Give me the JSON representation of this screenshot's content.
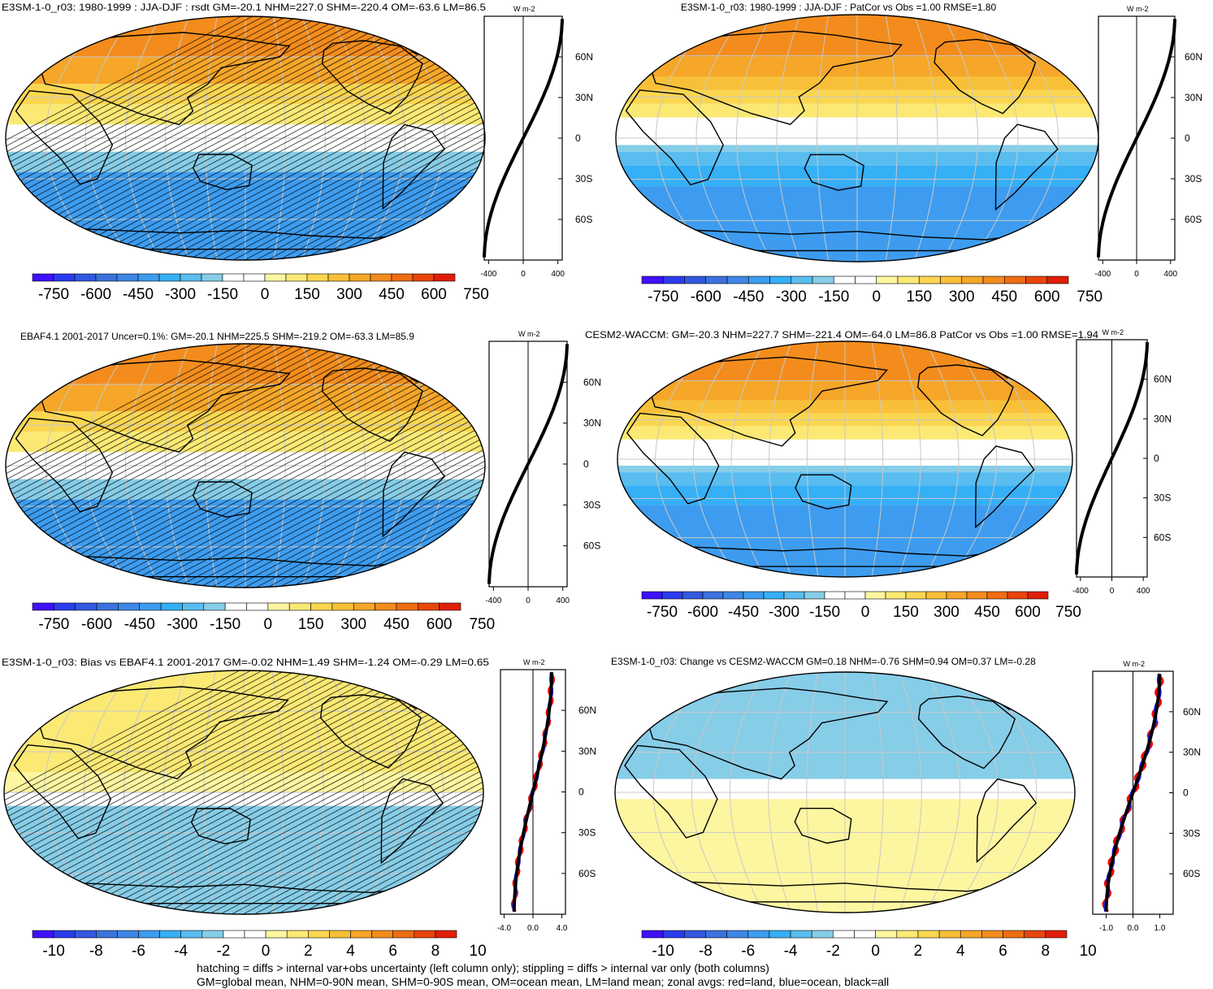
{
  "colors": {
    "scale": [
      "#3f10ff",
      "#2b3cef",
      "#3259e0",
      "#3b72de",
      "#3f86e6",
      "#3d9cef",
      "#35aff5",
      "#59bdf0",
      "#86cde8",
      "#ffffff",
      "#ffffff",
      "#fdf6a0",
      "#fbe974",
      "#fad650",
      "#f8c038",
      "#f6a628",
      "#f38c1c",
      "#ef6d12",
      "#e9450c",
      "#e01e08"
    ],
    "land": "#000000",
    "grid": "#c8c8c8"
  },
  "chart_data": [
    {
      "id": "p1",
      "type": "heatmap",
      "title": "E3SM-1-0_r03: 1980-1999 : JJA-DJF : rsdt GM=-20.1 NHM=227.0 SHM=-220.4 OM=-63.6 LM=86.5",
      "bands": [
        {
          "lat": [
            60,
            90
          ],
          "level": 16
        },
        {
          "lat": [
            40,
            60
          ],
          "level": 15
        },
        {
          "lat": [
            25,
            40
          ],
          "level": 13
        },
        {
          "lat": [
            10,
            25
          ],
          "level": 12
        },
        {
          "lat": [
            -10,
            10
          ],
          "level": 10
        },
        {
          "lat": [
            -25,
            -10
          ],
          "level": 8
        },
        {
          "lat": [
            -90,
            -25
          ],
          "level": 5
        }
      ],
      "hatching": true,
      "zonal": {
        "xlim": [
          -450,
          450
        ],
        "xticks": [
          "-400",
          "0",
          "400"
        ],
        "ylim": [
          -90,
          90
        ],
        "yticks": [
          "60N",
          "30N",
          "0",
          "30S",
          "60S"
        ],
        "units": "W m-2",
        "amplitude": 450,
        "series": [
          "all"
        ]
      },
      "colorbar": [
        "-750",
        "-600",
        "-450",
        "-300",
        "-150",
        "0",
        "150",
        "300",
        "450",
        "600",
        "750"
      ]
    },
    {
      "id": "p2",
      "type": "heatmap",
      "title": "E3SM-1-0_r03: 1980-1999 : JJA-DJF : PatCor vs Obs =1.00 RMSE=1.80",
      "bands": [
        {
          "lat": [
            60,
            90
          ],
          "level": 16
        },
        {
          "lat": [
            45,
            60
          ],
          "level": 15
        },
        {
          "lat": [
            35,
            45
          ],
          "level": 14
        },
        {
          "lat": [
            25,
            35
          ],
          "level": 13
        },
        {
          "lat": [
            15,
            25
          ],
          "level": 12
        },
        {
          "lat": [
            -5,
            15
          ],
          "level": 10
        },
        {
          "lat": [
            -10,
            -5
          ],
          "level": 8
        },
        {
          "lat": [
            -20,
            -10
          ],
          "level": 7
        },
        {
          "lat": [
            -35,
            -20
          ],
          "level": 6
        },
        {
          "lat": [
            -90,
            -35
          ],
          "level": 5
        }
      ],
      "hatching": false,
      "zonal": {
        "xlim": [
          -450,
          450
        ],
        "xticks": [
          "-400",
          "0",
          "400"
        ],
        "ylim": [
          -90,
          90
        ],
        "yticks": [
          "60N",
          "30N",
          "0",
          "30S",
          "60S"
        ],
        "units": "W m-2",
        "amplitude": 450,
        "series": [
          "all"
        ]
      },
      "colorbar": [
        "-750",
        "-600",
        "-450",
        "-300",
        "-150",
        "0",
        "150",
        "300",
        "450",
        "600",
        "750"
      ]
    },
    {
      "id": "p3",
      "type": "heatmap",
      "title": "EBAF4.1 2001-2017 Uncer=0.1%: GM=-20.1 NHM=225.5 SHM=-219.2 OM=-63.3 LM=85.9",
      "bands": [
        {
          "lat": [
            60,
            90
          ],
          "level": 16
        },
        {
          "lat": [
            40,
            60
          ],
          "level": 15
        },
        {
          "lat": [
            25,
            40
          ],
          "level": 13
        },
        {
          "lat": [
            10,
            25
          ],
          "level": 12
        },
        {
          "lat": [
            -10,
            10
          ],
          "level": 10
        },
        {
          "lat": [
            -25,
            -10
          ],
          "level": 8
        },
        {
          "lat": [
            -90,
            -25
          ],
          "level": 5
        }
      ],
      "hatching": true,
      "zonal": {
        "xlim": [
          -450,
          450
        ],
        "xticks": [
          "-400",
          "0",
          "400"
        ],
        "ylim": [
          -90,
          90
        ],
        "yticks": [
          "60N",
          "30N",
          "0",
          "30S",
          "60S"
        ],
        "units": "W m-2",
        "amplitude": 450,
        "series": [
          "all"
        ]
      },
      "colorbar": [
        "-750",
        "-600",
        "-450",
        "-300",
        "-150",
        "0",
        "150",
        "300",
        "450",
        "600",
        "750"
      ]
    },
    {
      "id": "p4",
      "type": "heatmap",
      "title": "CESM2-WACCM: GM=-20.3 NHM=227.7 SHM=-221.4 OM=-64.0 LM=86.8 PatCor vs Obs =1.00 RMSE=1.94",
      "bands": [
        {
          "lat": [
            60,
            90
          ],
          "level": 16
        },
        {
          "lat": [
            45,
            60
          ],
          "level": 15
        },
        {
          "lat": [
            35,
            45
          ],
          "level": 14
        },
        {
          "lat": [
            25,
            35
          ],
          "level": 13
        },
        {
          "lat": [
            15,
            25
          ],
          "level": 12
        },
        {
          "lat": [
            -5,
            15
          ],
          "level": 10
        },
        {
          "lat": [
            -10,
            -5
          ],
          "level": 8
        },
        {
          "lat": [
            -20,
            -10
          ],
          "level": 7
        },
        {
          "lat": [
            -35,
            -20
          ],
          "level": 6
        },
        {
          "lat": [
            -90,
            -35
          ],
          "level": 5
        }
      ],
      "hatching": false,
      "zonal": {
        "xlim": [
          -450,
          450
        ],
        "xticks": [
          "-400",
          "0",
          "400"
        ],
        "ylim": [
          -90,
          90
        ],
        "yticks": [
          "60N",
          "30N",
          "0",
          "30S",
          "60S"
        ],
        "units": "W m-2",
        "amplitude": 450,
        "series": [
          "all"
        ]
      },
      "colorbar": [
        "-750",
        "-600",
        "-450",
        "-300",
        "-150",
        "0",
        "150",
        "300",
        "450",
        "600",
        "750"
      ]
    },
    {
      "id": "p5",
      "type": "heatmap",
      "title": "E3SM-1-0_r03: Bias vs EBAF4.1 2001-2017 GM=-0.02 NHM=1.49 SHM=-1.24 OM=-0.29 LM=0.65",
      "bands": [
        {
          "lat": [
            15,
            90
          ],
          "level": 12
        },
        {
          "lat": [
            0,
            15
          ],
          "level": 11
        },
        {
          "lat": [
            -10,
            0
          ],
          "level": 9
        },
        {
          "lat": [
            -90,
            -10
          ],
          "level": 8
        }
      ],
      "hatching": true,
      "zonal": {
        "xlim": [
          -4.5,
          4.5
        ],
        "xticks": [
          "-4.0",
          "0.0",
          "4.0"
        ],
        "ylim": [
          -90,
          90
        ],
        "yticks": [
          "60N",
          "30N",
          "0",
          "30S",
          "60S"
        ],
        "units": "W m-2",
        "amplitude": 2.6,
        "series": [
          "land",
          "ocean",
          "all"
        ]
      },
      "colorbar": [
        "-10",
        "-8",
        "-6",
        "-4",
        "-2",
        "0",
        "2",
        "4",
        "6",
        "8",
        "10"
      ]
    },
    {
      "id": "p6",
      "type": "heatmap",
      "title": "E3SM-1-0_r03: Change vs CESM2-WACCM GM=0.18 NHM=-0.76 SHM=0.94 OM=0.37 LM=-0.28",
      "bands": [
        {
          "lat": [
            10,
            90
          ],
          "level": 8
        },
        {
          "lat": [
            -5,
            10
          ],
          "level": 10
        },
        {
          "lat": [
            -90,
            -5
          ],
          "level": 11
        }
      ],
      "hatching": false,
      "zonal": {
        "xlim": [
          -1.5,
          1.5
        ],
        "xticks": [
          "-1.0",
          "0.0",
          "1.0"
        ],
        "ylim": [
          -90,
          90
        ],
        "yticks": [
          "60N",
          "30N",
          "0",
          "30S",
          "60S"
        ],
        "units": "W m-2",
        "amplitude": 1.0,
        "series": [
          "land",
          "ocean",
          "all"
        ]
      },
      "colorbar": [
        "-10",
        "-8",
        "-6",
        "-4",
        "-2",
        "0",
        "2",
        "4",
        "6",
        "8",
        "10"
      ]
    }
  ],
  "series_colors": {
    "land": "#ff0000",
    "ocean": "#1a1aff",
    "all": "#000000"
  },
  "footer": {
    "line1": "hatching = diffs > internal var+obs uncertainty (left column only); stippling = diffs > internal var only (both columns)",
    "line2": "GM=global mean, NHM=0-90N mean, SHM=0-90S mean, OM=ocean mean, LM=land mean; zonal avgs: red=land, blue=ocean, black=all"
  }
}
